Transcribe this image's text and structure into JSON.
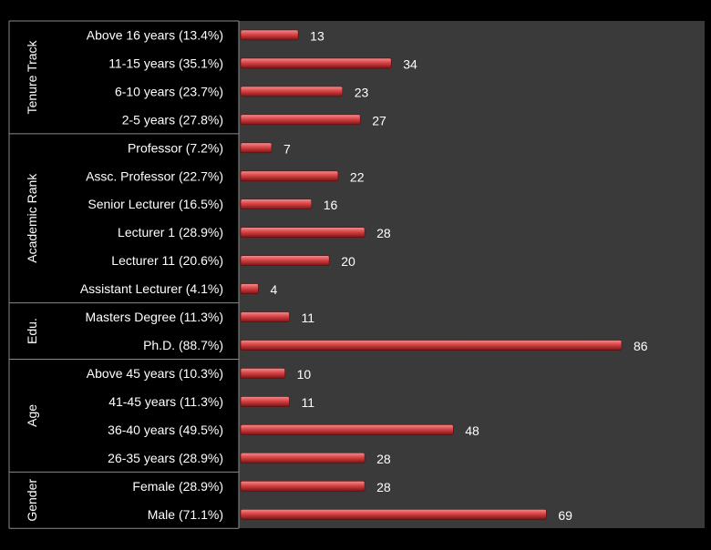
{
  "chart_data": {
    "type": "bar",
    "orientation": "horizontal",
    "colors": {
      "background": "#000000",
      "plot_area": "#3a3a3a",
      "bar": "#c0393b",
      "bar_light": "#f27c7c",
      "bar_dark": "#7a1416",
      "text": "#ffffff"
    },
    "groups": [
      {
        "label": "Tenure Track",
        "categories": [
          "Above 16 years (13.4%)",
          "11-15 years (35.1%)",
          "6-10 years (23.7%)",
          "2-5 years (27.8%)"
        ],
        "values": [
          13,
          34,
          23,
          27
        ]
      },
      {
        "label": "Academic Rank",
        "categories": [
          "Professor (7.2%)",
          "Assc. Professor (22.7%)",
          "Senior Lecturer (16.5%)",
          "Lecturer 1 (28.9%)",
          "Lecturer 11 (20.6%)",
          "Assistant Lecturer (4.1%)"
        ],
        "values": [
          7,
          22,
          16,
          28,
          20,
          4
        ]
      },
      {
        "label": "Edu.",
        "categories": [
          "Masters Degree  (11.3%)",
          "Ph.D. (88.7%)"
        ],
        "values": [
          11,
          86
        ]
      },
      {
        "label": "Age",
        "categories": [
          "Above 45 years (10.3%)",
          "41-45 years (11.3%)",
          "36-40 years (49.5%)",
          "26-35 years (28.9%)"
        ],
        "values": [
          10,
          11,
          48,
          28
        ]
      },
      {
        "label": "Gender",
        "categories": [
          "Female (28.9%)",
          "Male (71.1%)"
        ],
        "values": [
          28,
          69
        ]
      }
    ],
    "xlim": [
      0,
      100
    ],
    "grid": false,
    "legend": "none"
  }
}
